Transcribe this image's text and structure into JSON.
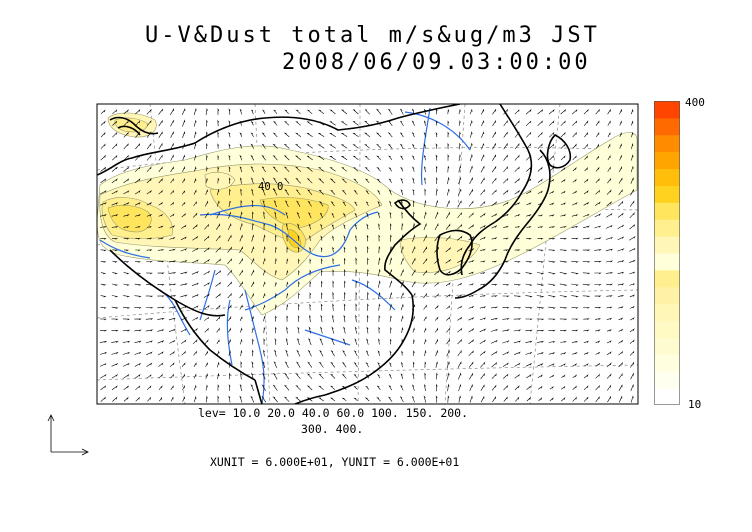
{
  "title": {
    "line1": "U-V&Dust total m/s&ug/m3 JST",
    "line2": "2008/06/09.03:00:00"
  },
  "map": {
    "contour_label": "40.0",
    "field": "Dust total concentration with U-V wind vectors",
    "fill_colors_low_to_high": [
      "#ffffd9",
      "#fff6b8",
      "#ffef8f",
      "#ffe45e",
      "#ffd21f",
      "#ffbe0a",
      "#ffa500",
      "#ff8c00",
      "#ff6a00",
      "#ff4500"
    ],
    "coastline_color": "#000000",
    "river_color": "#2e6fe6",
    "grid_color": "#888888"
  },
  "colorbar": {
    "max_label": "400",
    "min_label": "10"
  },
  "levels": {
    "line1": "lev= 10.0 20.0 40.0 60.0 100. 150. 200.",
    "line2": "300. 400."
  },
  "units": {
    "text": "XUNIT = 6.000E+01, YUNIT = 6.000E+01"
  },
  "chart_data": {
    "type": "heatmap",
    "title": "U-V&Dust total m/s&ug/m3 JST 2008/06/09.03:00:00",
    "levels": [
      10.0,
      20.0,
      40.0,
      60.0,
      100.0,
      150.0,
      200.0,
      300.0,
      400.0
    ],
    "colorbar_range": [
      10,
      400
    ],
    "vector_units": {
      "x": 60.0,
      "y": 60.0
    }
  }
}
